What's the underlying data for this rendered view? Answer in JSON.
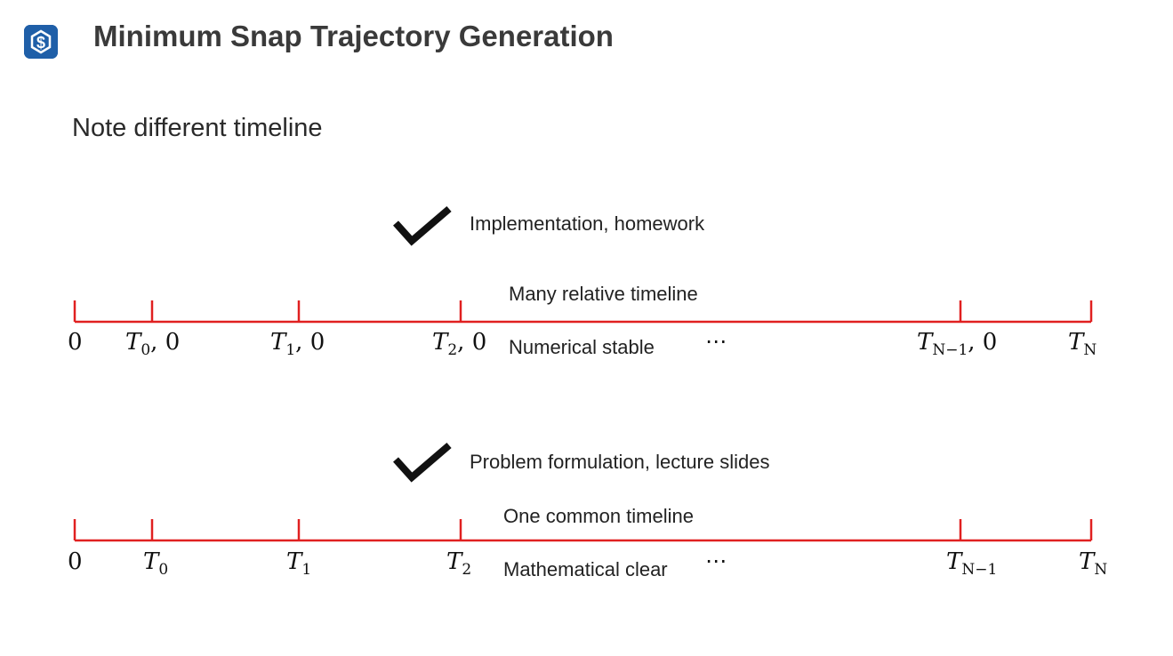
{
  "header": {
    "title": "Minimum Snap Trajectory Generation",
    "logo_icon": "s-logo-icon"
  },
  "subtitle": "Note different timeline",
  "diagram": {
    "line_color": "#e02020",
    "timelines": [
      {
        "check_label": "Implementation, homework",
        "above_label": "Many relative timeline",
        "below_label": "Numerical stable",
        "ellipsis": "⋯",
        "ticks": [
          {
            "symbol": "0",
            "sub": "",
            "suffix": ""
          },
          {
            "symbol": "T",
            "sub": "0",
            "suffix": ", 0"
          },
          {
            "symbol": "T",
            "sub": "1",
            "suffix": ", 0"
          },
          {
            "symbol": "T",
            "sub": "2",
            "suffix": ", 0"
          },
          {
            "symbol": "T",
            "sub": "N−1",
            "suffix": ", 0"
          },
          {
            "symbol": "T",
            "sub": "N",
            "suffix": ""
          }
        ]
      },
      {
        "check_label": "Problem formulation, lecture slides",
        "above_label": "One common timeline",
        "below_label": "Mathematical clear",
        "ellipsis": "⋯",
        "ticks": [
          {
            "symbol": "0",
            "sub": "",
            "suffix": ""
          },
          {
            "symbol": "T",
            "sub": "0",
            "suffix": ""
          },
          {
            "symbol": "T",
            "sub": "1",
            "suffix": ""
          },
          {
            "symbol": "T",
            "sub": "2",
            "suffix": ""
          },
          {
            "symbol": "T",
            "sub": "N−1",
            "suffix": ""
          },
          {
            "symbol": "T",
            "sub": "N",
            "suffix": ""
          }
        ]
      }
    ]
  }
}
